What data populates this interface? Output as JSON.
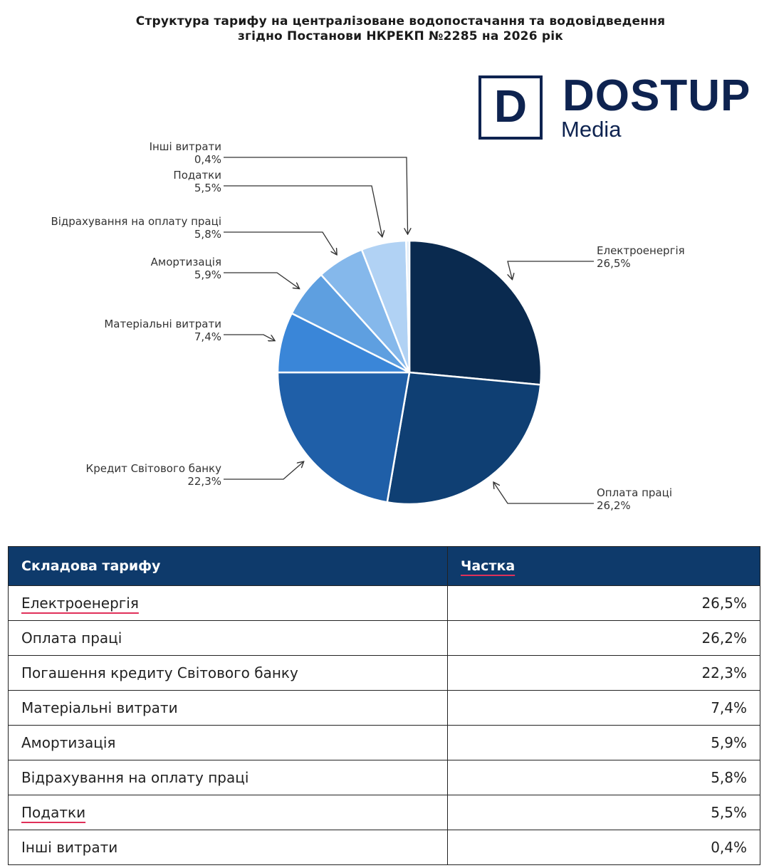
{
  "title_line1": "Структура тарифу на централізоване водопостачання та водовідведення",
  "title_line2": "згідно Постанови НКРЕКП №2285 на 2026 рік",
  "logo": {
    "letter": "D",
    "word": "DOSTUP",
    "sub": "Media",
    "color": "#0e2350"
  },
  "chart_data": {
    "type": "pie",
    "start": "12 o'clock, clockwise",
    "slices": [
      {
        "label": "Електроенергія",
        "value": 26.5,
        "text": "26,5%",
        "color": "#0a2a4f"
      },
      {
        "label": "Оплата праці",
        "value": 26.2,
        "text": "26,2%",
        "color": "#0f3f73"
      },
      {
        "label": "Кредит Світового банку",
        "value": 22.3,
        "text": "22,3%",
        "color": "#1f5fa8"
      },
      {
        "label": "Матеріальні витрати",
        "value": 7.4,
        "text": "7,4%",
        "color": "#3a86d8"
      },
      {
        "label": "Амортизація",
        "value": 5.9,
        "text": "5,9%",
        "color": "#5e9fe0"
      },
      {
        "label": "Відрахування на оплату праці",
        "value": 5.8,
        "text": "5,8%",
        "color": "#85b8eb"
      },
      {
        "label": "Податки",
        "value": 5.5,
        "text": "5,5%",
        "color": "#b1d2f4"
      },
      {
        "label": "Інші витрати",
        "value": 0.4,
        "text": "0,4%",
        "color": "#dceaf9"
      }
    ]
  },
  "table": {
    "headers": [
      "Складова тарифу",
      "Частка"
    ],
    "rows": [
      [
        "Електроенергія",
        "26,5%"
      ],
      [
        "Оплата праці",
        "26,2%"
      ],
      [
        "Погашення кредиту Світового банку",
        "22,3%"
      ],
      [
        "Матеріальні витрати",
        "7,4%"
      ],
      [
        "Амортизація",
        "5,9%"
      ],
      [
        "Відрахування на оплату праці",
        "5,8%"
      ],
      [
        "Податки",
        "5,5%"
      ],
      [
        "Інші витрати",
        "0,4%"
      ]
    ]
  }
}
